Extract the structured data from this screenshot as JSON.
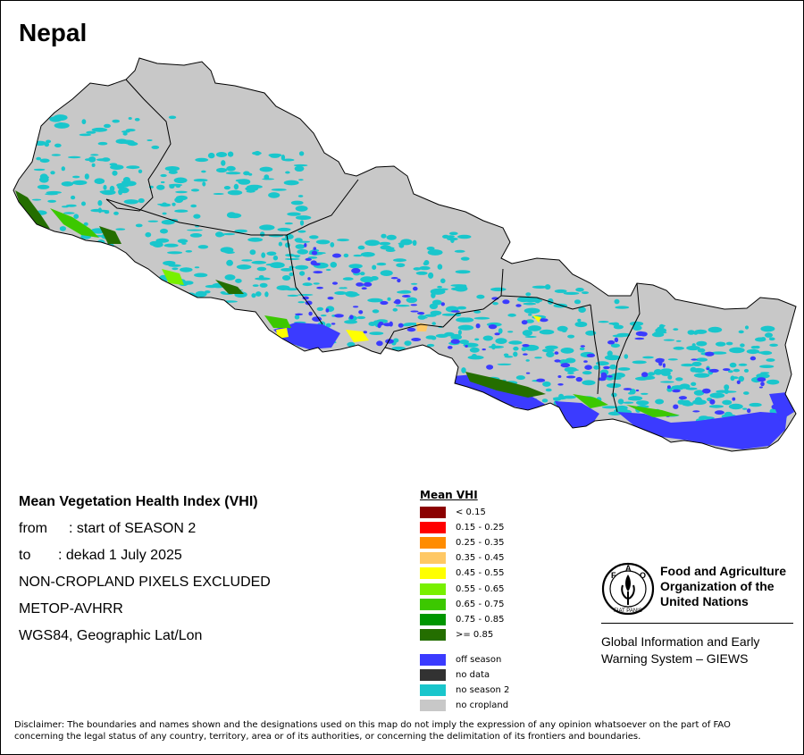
{
  "map": {
    "country": "Nepal",
    "colors": {
      "outside": "#ffffff",
      "no_cropland": "#c8c8c8",
      "no_season_2": "#19c6cc",
      "off_season": "#3b3bff",
      "border": "#000000"
    }
  },
  "info": {
    "title": "Mean Vegetation Health Index (VHI)",
    "from_label": "from",
    "from_value": ": start of SEASON 2",
    "to_label": "to",
    "to_value": ": dekad 1 July 2025",
    "note": "NON-CROPLAND PIXELS EXCLUDED",
    "sensor": "METOP-AVHRR",
    "projection": "WGS84, Geographic Lat/Lon"
  },
  "legend": {
    "title": "Mean VHI",
    "classes": [
      {
        "label": "< 0.15",
        "color": "#8b0000"
      },
      {
        "label": "0.15 - 0.25",
        "color": "#ff0000"
      },
      {
        "label": "0.25 - 0.35",
        "color": "#ff8c00"
      },
      {
        "label": "0.35 - 0.45",
        "color": "#ffc864"
      },
      {
        "label": "0.45 - 0.55",
        "color": "#ffff00"
      },
      {
        "label": "0.55 - 0.65",
        "color": "#78f000"
      },
      {
        "label": "0.65 - 0.75",
        "color": "#3cc800"
      },
      {
        "label": "0.75 - 0.85",
        "color": "#009600"
      },
      {
        "label": ">= 0.85",
        "color": "#246e00"
      }
    ],
    "special": [
      {
        "label": "off season",
        "color": "#3b3bff"
      },
      {
        "label": "no data",
        "color": "#323232"
      },
      {
        "label": "no season 2",
        "color": "#19c6cc"
      },
      {
        "label": "no cropland",
        "color": "#c8c8c8"
      }
    ]
  },
  "fao": {
    "logo_text": "FAO",
    "logo_motto": "FIAT PANIS",
    "name_line1": "Food and Agriculture",
    "name_line2": "Organization of the",
    "name_line3": "United Nations",
    "giews_line1": "Global Information and Early",
    "giews_line2": "Warning System – GIEWS"
  },
  "disclaimer": "Disclaimer: The boundaries and names shown and the designations used on this map do not imply the expression of any opinion whatsoever on the part of FAO concerning the legal status of any country, territory, area or of its authorities, or concerning the delimitation of its frontiers and boundaries."
}
